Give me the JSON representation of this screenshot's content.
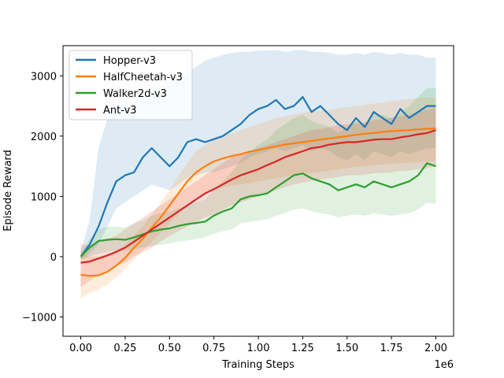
{
  "chart_data": {
    "type": "line",
    "title": "",
    "xlabel": "Training Steps",
    "ylabel": "Episode Reward",
    "x_offset_label": "1e6",
    "xlim": [
      -0.1,
      2.1
    ],
    "ylim": [
      -1320,
      3500
    ],
    "xticks": [
      0.0,
      0.25,
      0.5,
      0.75,
      1.0,
      1.25,
      1.5,
      1.75,
      2.0
    ],
    "xtick_labels": [
      "0.00",
      "0.25",
      "0.50",
      "0.75",
      "1.00",
      "1.25",
      "1.50",
      "1.75",
      "2.00"
    ],
    "yticks": [
      -1000,
      0,
      1000,
      2000,
      3000
    ],
    "ytick_labels": [
      "−1000",
      "0",
      "1000",
      "2000",
      "3000"
    ],
    "grid": false,
    "legend_position": "top-left",
    "series": [
      {
        "name": "Hopper-v3",
        "color": "#1f77b4",
        "x": [
          0.0,
          0.05,
          0.1,
          0.15,
          0.2,
          0.25,
          0.3,
          0.35,
          0.4,
          0.45,
          0.5,
          0.55,
          0.6,
          0.65,
          0.7,
          0.75,
          0.8,
          0.85,
          0.9,
          0.95,
          1.0,
          1.05,
          1.1,
          1.15,
          1.2,
          1.25,
          1.3,
          1.35,
          1.4,
          1.45,
          1.5,
          1.55,
          1.6,
          1.65,
          1.7,
          1.75,
          1.8,
          1.85,
          1.9,
          1.95,
          2.0
        ],
        "y": [
          0,
          200,
          500,
          900,
          1250,
          1350,
          1400,
          1650,
          1800,
          1650,
          1500,
          1650,
          1900,
          1950,
          1900,
          1950,
          2000,
          2100,
          2200,
          2350,
          2450,
          2500,
          2600,
          2450,
          2500,
          2650,
          2400,
          2500,
          2350,
          2200,
          2100,
          2300,
          2150,
          2400,
          2300,
          2200,
          2450,
          2300,
          2400,
          2500,
          2500
        ],
        "band_lower": [
          -50,
          50,
          200,
          500,
          800,
          900,
          1000,
          1100,
          1200,
          1150,
          1100,
          1200,
          1300,
          1350,
          1400,
          1400,
          1450,
          1500,
          1550,
          1650,
          1700,
          1750,
          1800,
          1750,
          1800,
          1850,
          1750,
          1800,
          1750,
          1650,
          1600,
          1700,
          1600,
          1750,
          1700,
          1650,
          1750,
          1700,
          1750,
          1800,
          1800
        ],
        "band_upper": [
          100,
          600,
          1800,
          2300,
          2500,
          2550,
          2600,
          2700,
          2800,
          2850,
          2900,
          2950,
          3050,
          3150,
          3250,
          3300,
          3350,
          3380,
          3400,
          3400,
          3420,
          3420,
          3430,
          3400,
          3420,
          3430,
          3400,
          3400,
          3380,
          3350,
          3350,
          3380,
          3350,
          3400,
          3380,
          3350,
          3380,
          3350,
          3350,
          3300,
          3300
        ]
      },
      {
        "name": "HalfCheetah-v3",
        "color": "#ff7f0e",
        "x": [
          0.0,
          0.05,
          0.1,
          0.15,
          0.2,
          0.25,
          0.3,
          0.35,
          0.4,
          0.45,
          0.5,
          0.55,
          0.6,
          0.65,
          0.7,
          0.75,
          0.8,
          0.85,
          0.9,
          0.95,
          1.0,
          1.05,
          1.1,
          1.15,
          1.2,
          1.25,
          1.3,
          1.35,
          1.4,
          1.45,
          1.5,
          1.55,
          1.6,
          1.65,
          1.7,
          1.75,
          1.8,
          1.85,
          1.9,
          1.95,
          2.0
        ],
        "y": [
          -300,
          -320,
          -310,
          -250,
          -150,
          -20,
          150,
          300,
          480,
          650,
          850,
          1050,
          1250,
          1400,
          1500,
          1580,
          1630,
          1670,
          1700,
          1740,
          1770,
          1800,
          1830,
          1860,
          1880,
          1900,
          1920,
          1940,
          1960,
          1980,
          2000,
          2020,
          2040,
          2050,
          2070,
          2080,
          2090,
          2100,
          2110,
          2120,
          2130
        ],
        "band_lower": [
          -700,
          -600,
          -550,
          -450,
          -350,
          -200,
          -50,
          100,
          250,
          400,
          550,
          700,
          850,
          950,
          1050,
          1100,
          1150,
          1180,
          1200,
          1220,
          1250,
          1280,
          1300,
          1330,
          1350,
          1370,
          1390,
          1410,
          1430,
          1450,
          1470,
          1490,
          1500,
          1520,
          1530,
          1540,
          1550,
          1560,
          1570,
          1580,
          1590
        ],
        "band_upper": [
          100,
          0,
          0,
          50,
          100,
          200,
          350,
          500,
          700,
          900,
          1100,
          1350,
          1550,
          1750,
          1850,
          1950,
          2000,
          2050,
          2100,
          2150,
          2200,
          2250,
          2300,
          2330,
          2360,
          2390,
          2400,
          2420,
          2440,
          2460,
          2480,
          2500,
          2520,
          2540,
          2560,
          2580,
          2600,
          2620,
          2630,
          2640,
          2650
        ]
      },
      {
        "name": "Walker2d-v3",
        "color": "#2ca02c",
        "x": [
          0.0,
          0.05,
          0.1,
          0.15,
          0.2,
          0.25,
          0.3,
          0.35,
          0.4,
          0.45,
          0.5,
          0.55,
          0.6,
          0.65,
          0.7,
          0.75,
          0.8,
          0.85,
          0.9,
          0.95,
          1.0,
          1.05,
          1.1,
          1.15,
          1.2,
          1.25,
          1.3,
          1.35,
          1.4,
          1.45,
          1.5,
          1.55,
          1.6,
          1.65,
          1.7,
          1.75,
          1.8,
          1.85,
          1.9,
          1.95,
          2.0
        ],
        "y": [
          0,
          150,
          260,
          280,
          290,
          280,
          320,
          370,
          420,
          450,
          470,
          510,
          540,
          560,
          580,
          680,
          750,
          800,
          950,
          1000,
          1020,
          1050,
          1150,
          1250,
          1350,
          1380,
          1300,
          1250,
          1200,
          1100,
          1150,
          1200,
          1150,
          1250,
          1200,
          1150,
          1200,
          1250,
          1350,
          1550,
          1500
        ],
        "band_lower": [
          -50,
          0,
          50,
          80,
          100,
          100,
          120,
          150,
          180,
          200,
          220,
          250,
          270,
          290,
          320,
          380,
          420,
          450,
          550,
          580,
          600,
          620,
          680,
          720,
          780,
          800,
          750,
          720,
          700,
          650,
          680,
          700,
          680,
          720,
          700,
          680,
          700,
          720,
          780,
          900,
          880
        ],
        "band_upper": [
          50,
          300,
          450,
          500,
          500,
          480,
          550,
          600,
          680,
          720,
          750,
          800,
          850,
          900,
          950,
          1100,
          1250,
          1400,
          1600,
          1750,
          1850,
          1950,
          2100,
          2200,
          2300,
          2350,
          2250,
          2200,
          2150,
          2050,
          2150,
          2250,
          2200,
          2350,
          2350,
          2300,
          2400,
          2500,
          2650,
          2800,
          2800
        ]
      },
      {
        "name": "Ant-v3",
        "color": "#d62728",
        "x": [
          0.0,
          0.05,
          0.1,
          0.15,
          0.2,
          0.25,
          0.3,
          0.35,
          0.4,
          0.45,
          0.5,
          0.55,
          0.6,
          0.65,
          0.7,
          0.75,
          0.8,
          0.85,
          0.9,
          0.95,
          1.0,
          1.05,
          1.1,
          1.15,
          1.2,
          1.25,
          1.3,
          1.35,
          1.4,
          1.45,
          1.5,
          1.55,
          1.6,
          1.65,
          1.7,
          1.75,
          1.8,
          1.85,
          1.9,
          1.95,
          2.0
        ],
        "y": [
          -100,
          -80,
          -30,
          20,
          80,
          150,
          250,
          350,
          450,
          550,
          650,
          750,
          850,
          950,
          1050,
          1120,
          1200,
          1280,
          1350,
          1400,
          1450,
          1520,
          1580,
          1650,
          1700,
          1750,
          1800,
          1820,
          1860,
          1880,
          1900,
          1900,
          1920,
          1940,
          1950,
          1950,
          1980,
          2000,
          2030,
          2050,
          2100
        ],
        "band_lower": [
          -500,
          -400,
          -300,
          -250,
          -150,
          -100,
          0,
          80,
          150,
          250,
          350,
          420,
          500,
          580,
          650,
          700,
          780,
          850,
          900,
          950,
          1000,
          1050,
          1100,
          1150,
          1200,
          1230,
          1260,
          1280,
          1300,
          1320,
          1350,
          1350,
          1360,
          1380,
          1390,
          1400,
          1420,
          1430,
          1450,
          1470,
          1500
        ],
        "band_upper": [
          200,
          200,
          250,
          300,
          350,
          450,
          550,
          650,
          750,
          850,
          950,
          1050,
          1150,
          1250,
          1350,
          1450,
          1550,
          1650,
          1700,
          1750,
          1800,
          1850,
          1900,
          1950,
          2000,
          2050,
          2100,
          2120,
          2150,
          2180,
          2200,
          2200,
          2230,
          2260,
          2280,
          2300,
          2330,
          2360,
          2400,
          2440,
          2480
        ]
      }
    ]
  }
}
